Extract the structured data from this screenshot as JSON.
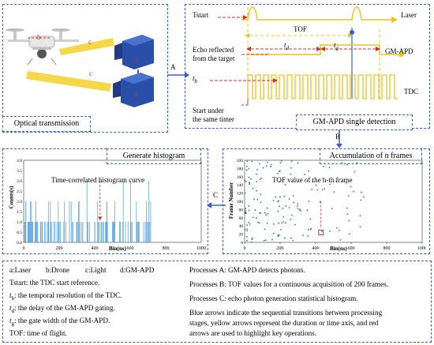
{
  "panels": {
    "optical": {
      "title": "Optical transmission"
    },
    "gmapd": {
      "title": "GM-APD single detection"
    },
    "accum": {
      "title": "Accumulation of n frames"
    },
    "hist": {
      "title": "Generate histogram"
    }
  },
  "arrows": {
    "a": "A",
    "b": "B",
    "c": "C"
  },
  "optical_labels": {
    "a1": "a",
    "a2": "a",
    "b": "b",
    "c1": "c",
    "c2": "c",
    "d1": "d",
    "d2": "d"
  },
  "timing": {
    "tstart": "Tstart",
    "laser": "Laser",
    "tof": "TOF",
    "echo_line1": "Echo reflected",
    "echo_line2": "from the target",
    "gmapd": "GM-APD",
    "td": "t",
    "td_sub": "d",
    "tg": "t",
    "tg_sub": "g",
    "tb": "t",
    "tb_sub": "b",
    "tdc": "TDC",
    "start_line1": "Start under",
    "start_line2": "the same timer"
  },
  "scatter": {
    "annotation": "TOF value of the n-th frame",
    "ylabel": "Frame Number",
    "xlabel": "Bin(ns)",
    "xticks": [
      "0",
      "200",
      "400",
      "600",
      "800",
      "1000"
    ],
    "yticks": [
      "0",
      "20",
      "40",
      "60",
      "80",
      "100",
      "120",
      "140",
      "160",
      "180",
      "200"
    ]
  },
  "histogram": {
    "annotation": "Time-correlated histogram curve",
    "ylabel": "Counts(s)",
    "xlabel": "Bin(ns)",
    "xticks": [
      "0",
      "200",
      "400",
      "600",
      "800",
      "1000"
    ],
    "yticks": [
      "0.0",
      "0.5",
      "1.0",
      "1.5",
      "2.0",
      "2.5",
      "3.0",
      "3.5",
      "4.0"
    ]
  },
  "legend": {
    "items": [
      "a:Laser",
      "b:Drone",
      "c:Light",
      "d:GM-APD"
    ],
    "tstart": "Tstart: the TDC start reference.",
    "tb_def": ": the temporal resolution of the TDC.",
    "td_def": ": the delay of the GM-APD gating.",
    "tg_def": ": the gate width of the GM-APD.",
    "tof_def": "TOF: time of flight.",
    "proc_a": "Processes A: GM-APD detects photons.",
    "proc_b": "Processes B: TOF values for a continuous acquisition of 200 frames.",
    "proc_c": "Processes C: echo photon generation statistical histogram.",
    "note_line1": "Blue arrows indicate the sequential transitions between processing",
    "note_line2": "stages, yellow arrows represent the duration or time axis, and red",
    "note_line3": "arrows are used to highlight key operations."
  },
  "colors": {
    "panel_border": "#3b5fc0",
    "yellow": "#f0c020",
    "red": "#c0392b",
    "blue_bar": "#5aa9e6",
    "scatter": "#2e6fb8"
  }
}
